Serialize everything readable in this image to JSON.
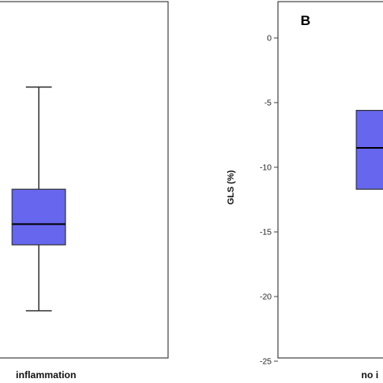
{
  "colors": {
    "box_fill": "#6666ee",
    "box_stroke": "#333333",
    "frame": "#444444"
  },
  "chart_data": [
    {
      "type": "box",
      "panel": "A",
      "panel_label_visible": false,
      "categories": [
        "inflammation"
      ],
      "boxes": [
        {
          "category": "inflammation",
          "whisker_low": -21.1,
          "q1": -16.0,
          "median": -14.4,
          "q3": -11.7,
          "whisker_high": -3.8
        }
      ],
      "ylim": [
        -25,
        2
      ],
      "ylabel": "",
      "yticks": []
    },
    {
      "type": "box",
      "panel": "B",
      "panel_label_visible": true,
      "categories": [
        "no i"
      ],
      "boxes": [
        {
          "category": "no i",
          "q1": -11.7,
          "median": -8.5,
          "q3": -5.6
        }
      ],
      "ylim": [
        -25,
        2
      ],
      "ylabel": "GLS (%)",
      "yticks": [
        {
          "value": 0,
          "label": "0"
        },
        {
          "value": -5,
          "label": "-5"
        },
        {
          "value": -10,
          "label": "-10"
        },
        {
          "value": -15,
          "label": "-15"
        },
        {
          "value": -20,
          "label": "-20"
        },
        {
          "value": -25,
          "label": "-25"
        }
      ]
    }
  ]
}
